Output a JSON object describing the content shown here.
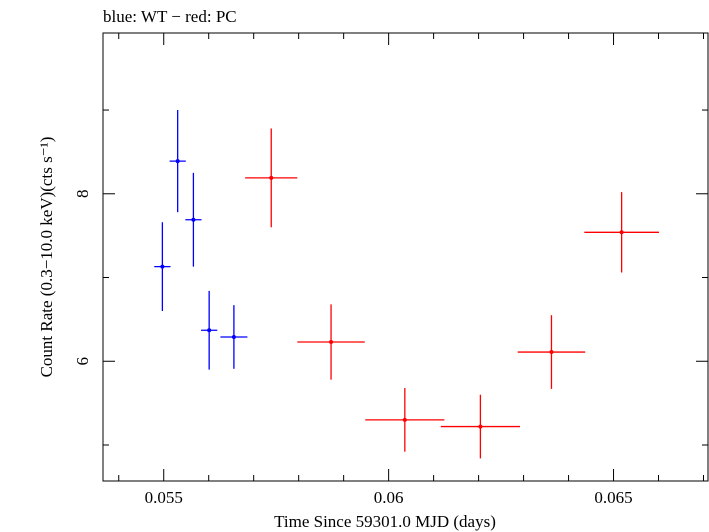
{
  "chart_data": {
    "type": "scatter",
    "title": "blue: WT − red: PC",
    "xlabel": "Time Since 59301.0 MJD (days)",
    "ylabel": "Count Rate (0.3−10.0 keV)(cts s⁻¹)",
    "xlim": [
      0.05365,
      0.0671
    ],
    "ylim": [
      4.57,
      9.92
    ],
    "x_ticks": [
      {
        "value": 0.055,
        "label": "0.055"
      },
      {
        "value": 0.06,
        "label": "0.06"
      },
      {
        "value": 0.065,
        "label": "0.065"
      }
    ],
    "y_ticks": [
      {
        "value": 6,
        "label": "6"
      },
      {
        "value": 8,
        "label": "8"
      }
    ],
    "grid": false,
    "series": [
      {
        "name": "WT",
        "color": "#0000ff",
        "points": [
          {
            "x": 0.05497,
            "xerr": 0.00018,
            "y": 7.13,
            "yerr": 0.53
          },
          {
            "x": 0.05531,
            "xerr": 0.00018,
            "y": 8.39,
            "yerr": 0.61
          },
          {
            "x": 0.05566,
            "xerr": 0.00018,
            "y": 7.69,
            "yerr": 0.56
          },
          {
            "x": 0.05601,
            "xerr": 0.00018,
            "y": 6.37,
            "yerr": 0.47
          },
          {
            "x": 0.05656,
            "xerr": 0.0003,
            "y": 6.29,
            "yerr": 0.38
          }
        ]
      },
      {
        "name": "PC",
        "color": "#ff0000",
        "points": [
          {
            "x": 0.05739,
            "xerr": 0.00058,
            "y": 8.19,
            "yerr": 0.59
          },
          {
            "x": 0.05872,
            "xerr": 0.00075,
            "y": 6.23,
            "yerr": 0.45
          },
          {
            "x": 0.06036,
            "xerr": 0.00088,
            "y": 5.3,
            "yerr": 0.38
          },
          {
            "x": 0.06204,
            "xerr": 0.00088,
            "y": 5.22,
            "yerr": 0.38
          },
          {
            "x": 0.06362,
            "xerr": 0.00075,
            "y": 6.11,
            "yerr": 0.44
          },
          {
            "x": 0.06518,
            "xerr": 0.00083,
            "y": 7.54,
            "yerr": 0.48
          }
        ]
      }
    ]
  }
}
